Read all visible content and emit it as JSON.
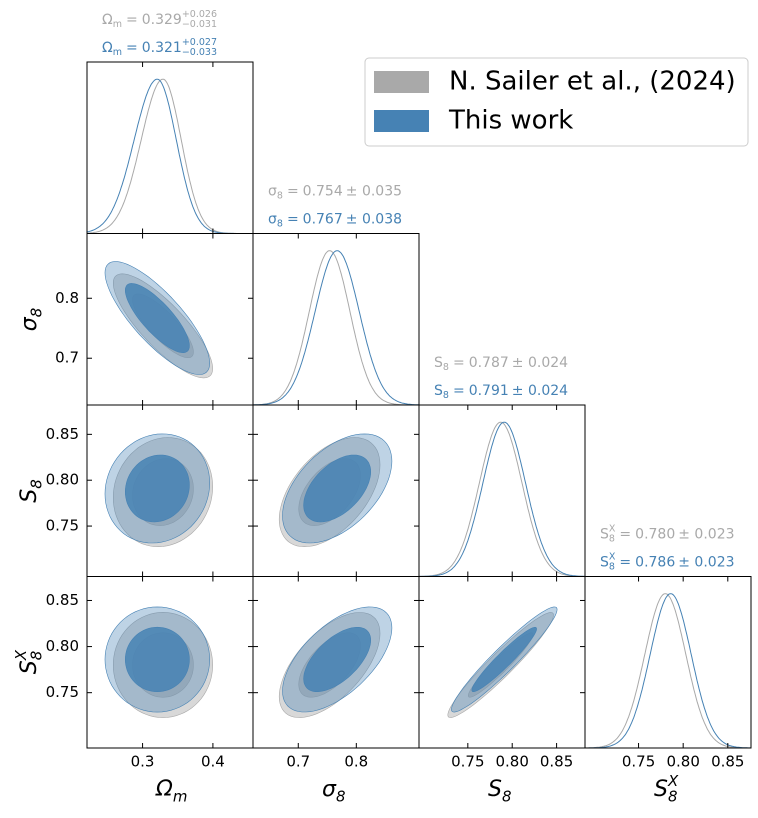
{
  "chart_data": {
    "type": "corner",
    "legend": "upper right",
    "equals": "=",
    "params": [
      {
        "main": "Ω",
        "sub": "m",
        "lim": [
          0.221,
          0.457
        ],
        "ticks": [
          0.3,
          0.4
        ]
      },
      {
        "main": "σ",
        "sub": "8",
        "lim": [
          0.622,
          0.908
        ],
        "ticks": [
          0.7,
          0.8
        ]
      },
      {
        "main": "S",
        "sub": "8",
        "lim": [
          0.695,
          0.882
        ],
        "ticks": [
          0.75,
          {
            "value": 0.8,
            "label": "0.80"
          },
          0.85
        ]
      },
      {
        "main": "S",
        "sub": "8",
        "sup": "X",
        "lim": [
          0.69,
          0.876
        ],
        "ticks": [
          0.75,
          {
            "value": 0.8,
            "label": "0.80"
          },
          0.85
        ]
      }
    ],
    "series": [
      {
        "name": "N. Sailer et al., (2024)",
        "color": "#a9a9a9",
        "stats": [
          {
            "mean": 0.329,
            "plus": {
              "value": 0.026,
              "label": "+0.026"
            },
            "minus": {
              "value": 0.031,
              "label": "−0.031"
            }
          },
          {
            "mean": 0.754,
            "err": {
              "value": 0.035,
              "label": "± 0.035"
            }
          },
          {
            "mean": 0.787,
            "err": {
              "value": 0.024,
              "label": "± 0.024"
            }
          },
          {
            "mean": {
              "value": 0.78,
              "label": "0.780"
            },
            "err": {
              "value": 0.023,
              "label": "± 0.023"
            }
          }
        ],
        "correlations": [
          [
            -0.82
          ],
          [
            0.1,
            0.5
          ],
          [
            0.0,
            0.6,
            0.95
          ]
        ]
      },
      {
        "name": "This work",
        "color": "#4682b4",
        "stats": [
          {
            "mean": 0.321,
            "plus": {
              "value": 0.027,
              "label": "+0.027"
            },
            "minus": {
              "value": 0.033,
              "label": "−0.033"
            }
          },
          {
            "mean": 0.767,
            "err": {
              "value": 0.038,
              "label": "± 0.038"
            }
          },
          {
            "mean": 0.791,
            "err": {
              "value": 0.024,
              "label": "± 0.024"
            }
          },
          {
            "mean": 0.786,
            "err": {
              "value": 0.023,
              "label": "± 0.023"
            }
          }
        ],
        "correlations": [
          [
            -0.8
          ],
          [
            0.1,
            0.5
          ],
          [
            0.0,
            0.6,
            0.95
          ]
        ]
      }
    ]
  }
}
